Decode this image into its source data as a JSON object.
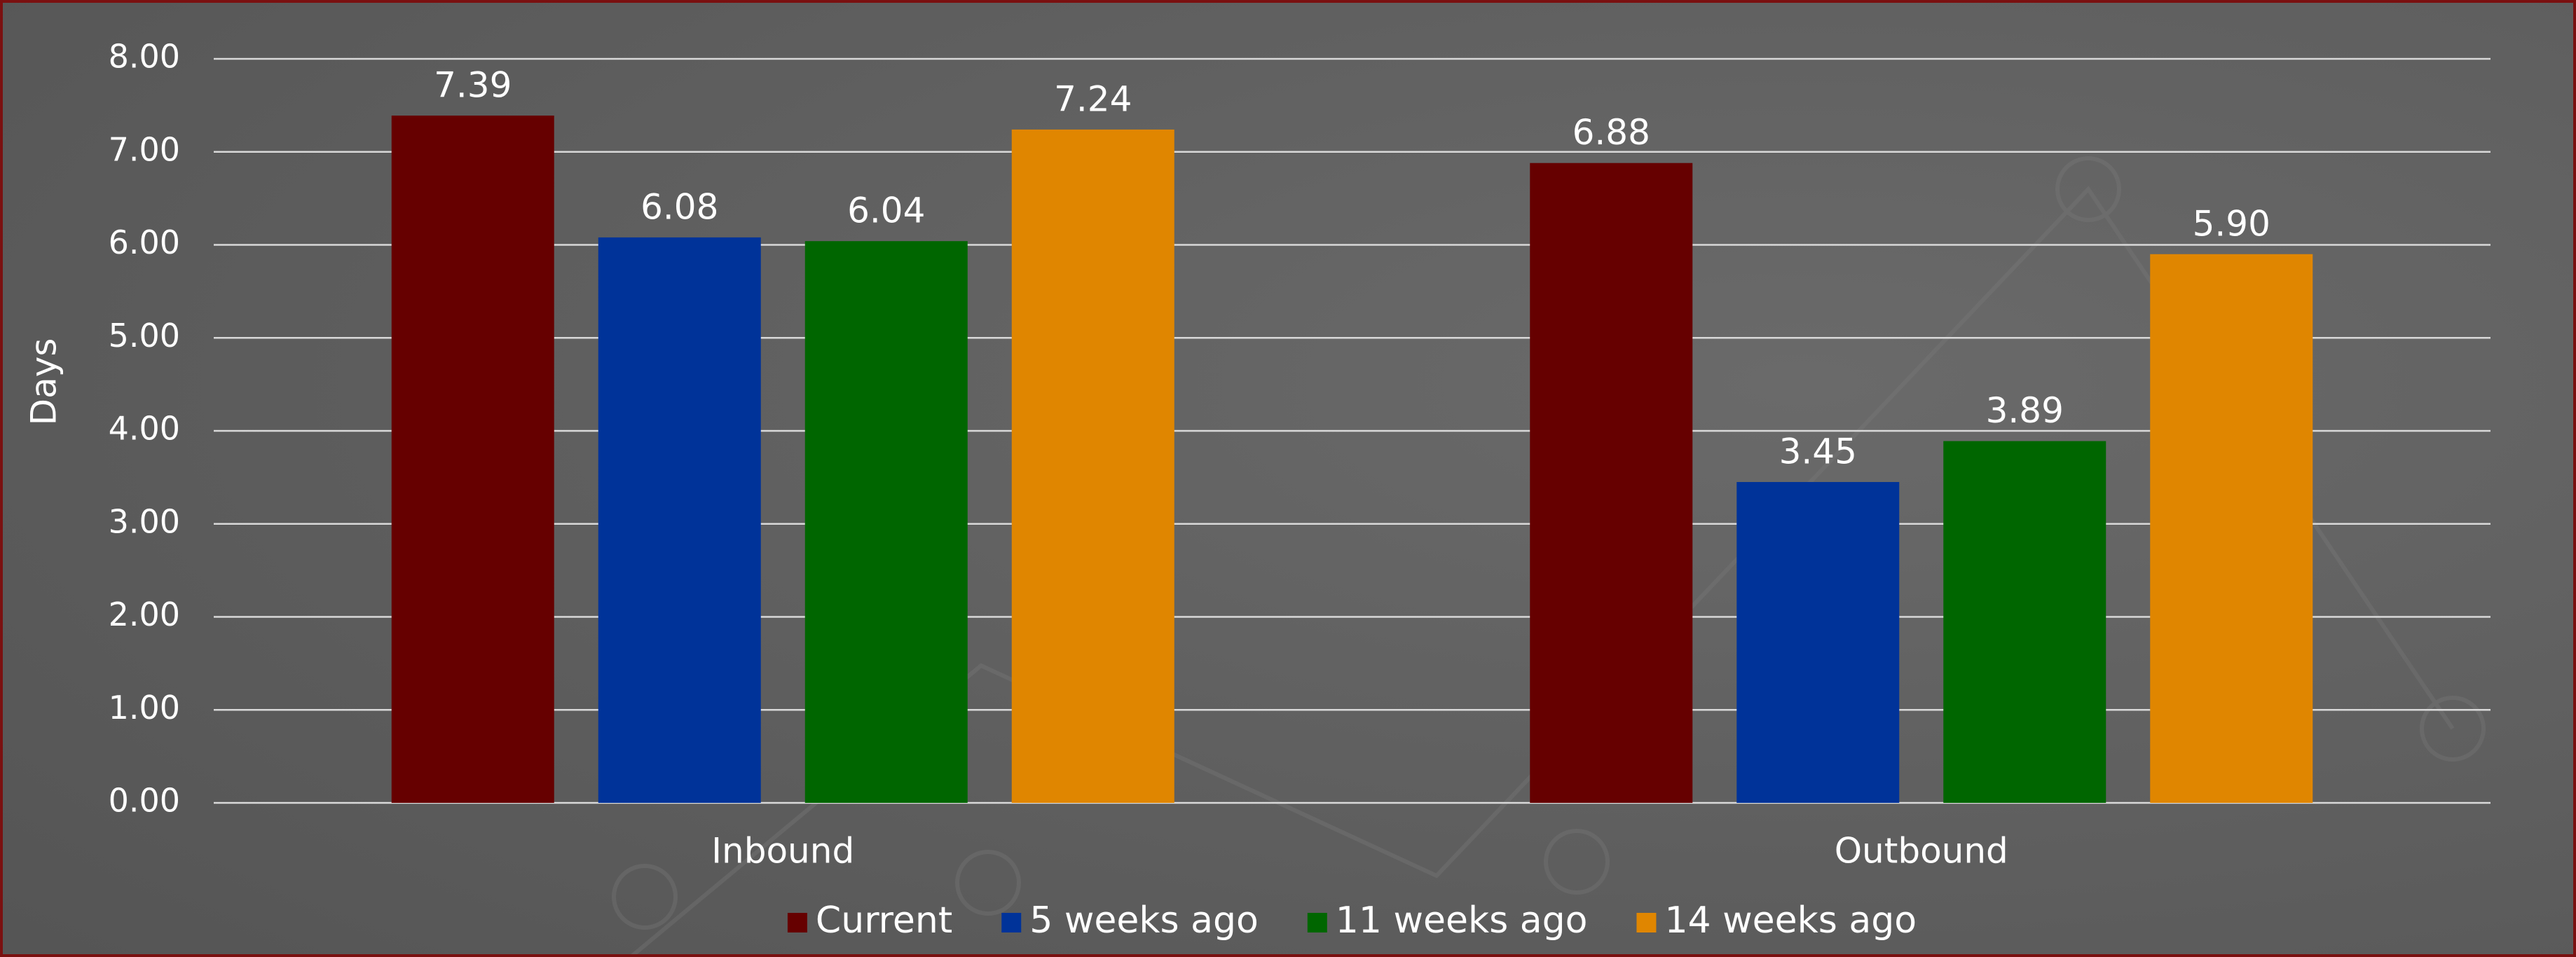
{
  "chart_data": {
    "type": "bar",
    "y_label": "Days",
    "categories": [
      "Inbound",
      "Outbound"
    ],
    "series": [
      {
        "name": "Current",
        "color": "#660000",
        "values": [
          7.39,
          6.88
        ]
      },
      {
        "name": "5 weeks ago",
        "color": "#003399",
        "values": [
          6.08,
          3.45
        ]
      },
      {
        "name": "11 weeks ago",
        "color": "#006600",
        "values": [
          6.04,
          3.89
        ]
      },
      {
        "name": "14 weeks ago",
        "color": "#e08600",
        "values": [
          7.24,
          5.9
        ],
        "value_labels": [
          "7.24",
          "5.90"
        ]
      }
    ],
    "ylim": [
      0,
      8
    ],
    "yticks": [
      {
        "value": 0,
        "label": "0.00"
      },
      {
        "value": 1,
        "label": "1.00"
      },
      {
        "value": 2,
        "label": "2.00"
      },
      {
        "value": 3,
        "label": "3.00"
      },
      {
        "value": 4,
        "label": "4.00"
      },
      {
        "value": 5,
        "label": "5.00"
      },
      {
        "value": 6,
        "label": "6.00"
      },
      {
        "value": 7,
        "label": "7.00"
      },
      {
        "value": 8,
        "label": "8.00"
      }
    ],
    "grid": true,
    "legend": "bottom"
  }
}
